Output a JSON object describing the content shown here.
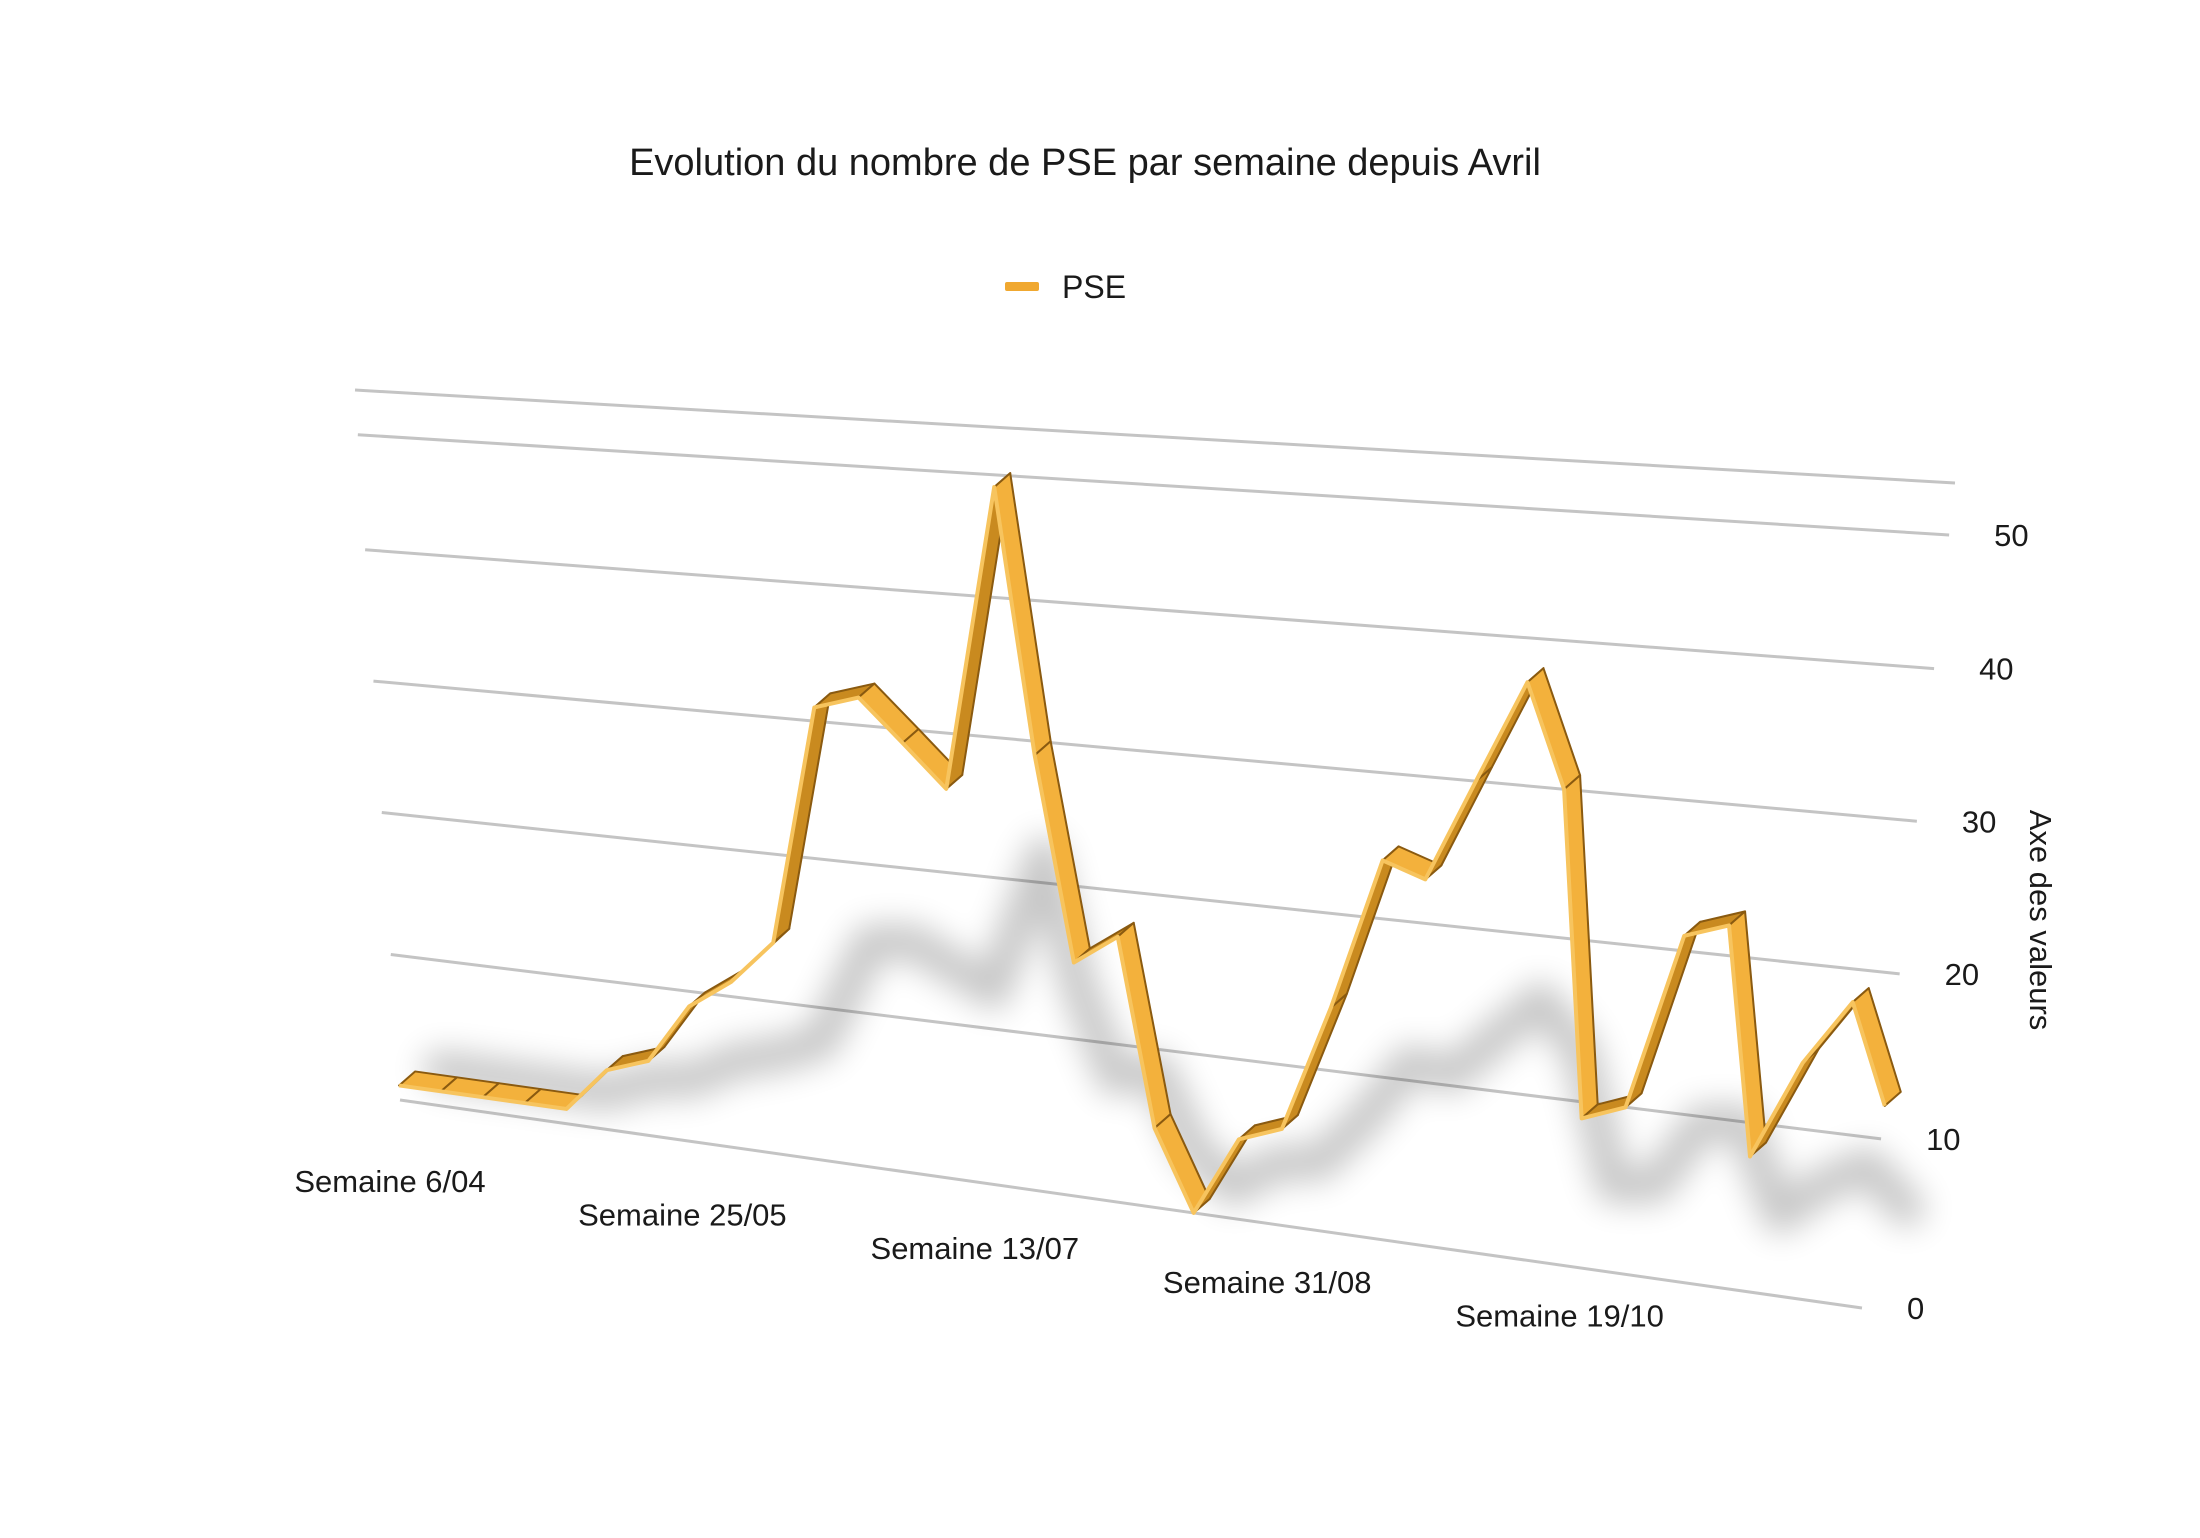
{
  "chart_data": {
    "type": "line",
    "title": "Evolution du nombre de PSE par semaine depuis Avril",
    "legend": {
      "position": "top",
      "entries": [
        "PSE"
      ]
    },
    "ylabel": "Axe des valeurs",
    "xlabel": "",
    "ylim": [
      0,
      50
    ],
    "yticks": [
      0,
      10,
      20,
      30,
      40,
      50
    ],
    "grid": true,
    "x_tick_labels": [
      "Semaine 6/04",
      "Semaine 25/05",
      "Semaine 13/07",
      "Semaine 31/08",
      "Semaine 19/10"
    ],
    "x_tick_indices": [
      0,
      7,
      14,
      21,
      28
    ],
    "series": [
      {
        "name": "PSE",
        "color": "#f0a830",
        "values": [
          1,
          1,
          1,
          1,
          1,
          4,
          5,
          9,
          11,
          14,
          31,
          32,
          29,
          26,
          49,
          29,
          15,
          17,
          5,
          0,
          5,
          6,
          14,
          24,
          23,
          30,
          37,
          30,
          9,
          10,
          21,
          22,
          8,
          14,
          18,
          12
        ]
      }
    ]
  }
}
